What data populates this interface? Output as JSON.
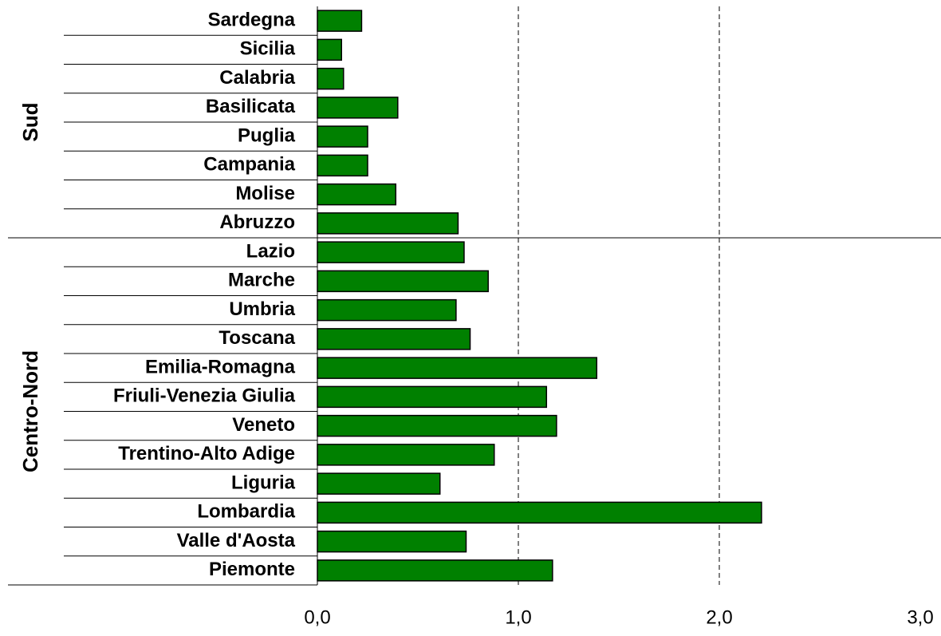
{
  "chart_data": {
    "type": "bar",
    "orientation": "horizontal",
    "color": "#008000",
    "groups": [
      {
        "name": "Sud",
        "categories": [
          "Sardegna",
          "Sicilia",
          "Calabria",
          "Basilicata",
          "Puglia",
          "Campania",
          "Molise",
          "Abruzzo"
        ],
        "values": [
          0.22,
          0.12,
          0.13,
          0.4,
          0.25,
          0.25,
          0.39,
          0.7
        ]
      },
      {
        "name": "Centro-Nord",
        "categories": [
          "Lazio",
          "Marche",
          "Umbria",
          "Toscana",
          "Emilia-Romagna",
          "Friuli-Venezia Giulia",
          "Veneto",
          "Trentino-Alto Adige",
          "Liguria",
          "Lombardia",
          "Valle d'Aosta",
          "Piemonte"
        ],
        "values": [
          0.73,
          0.85,
          0.69,
          0.76,
          1.39,
          1.14,
          1.19,
          0.88,
          0.61,
          2.21,
          0.74,
          1.17
        ]
      }
    ],
    "xlim": [
      0,
      3
    ],
    "xticks": [
      {
        "value": 0,
        "label": "0,0"
      },
      {
        "value": 1,
        "label": "1,0"
      },
      {
        "value": 2,
        "label": "2,0"
      },
      {
        "value": 3,
        "label": "3,0"
      }
    ],
    "grid": true
  }
}
